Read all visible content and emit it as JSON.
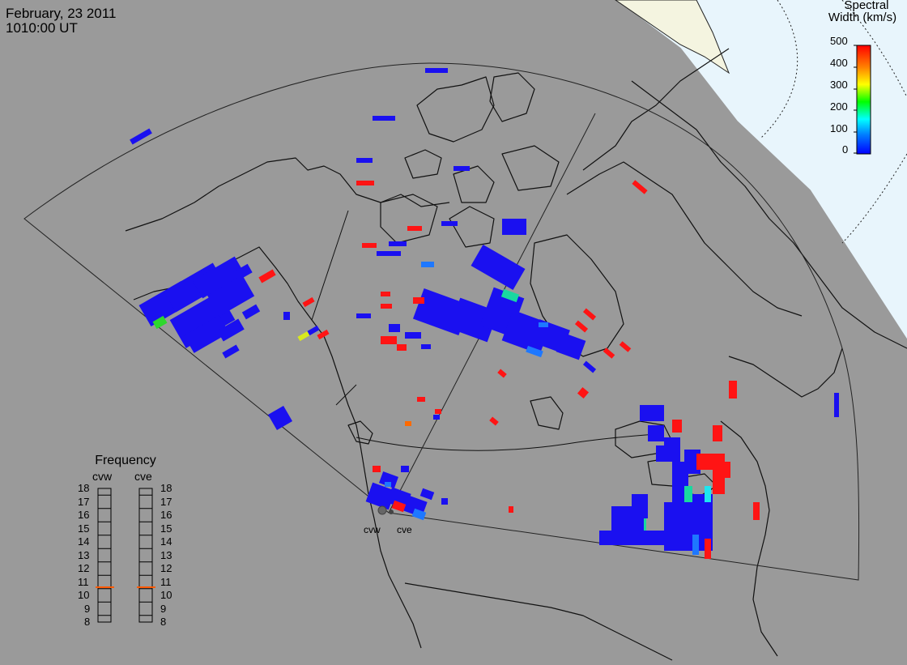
{
  "header": {
    "date": "February, 23 2011",
    "time": "1010:00 UT"
  },
  "colorbar": {
    "title_line1": "Spectral",
    "title_line2": "Width (km/s)",
    "ticks": [
      "500",
      "400",
      "300",
      "200",
      "100",
      "0"
    ],
    "colors": [
      "#ff0000",
      "#ff8000",
      "#ffff00",
      "#00ff00",
      "#00ffff",
      "#0080ff",
      "#0000ff"
    ]
  },
  "frequency_panel": {
    "title": "Frequency",
    "radars": [
      {
        "name": "cvw",
        "value_mhz": 10.6
      },
      {
        "name": "cve",
        "value_mhz": 10.6
      }
    ],
    "scale": [
      "18",
      "17",
      "16",
      "15",
      "14",
      "13",
      "12",
      "11",
      "10",
      "9",
      "8"
    ],
    "marker_color": "#ff5a00"
  },
  "map": {
    "radar_labels": [
      "cvw",
      "cve"
    ],
    "background_color": "#9a9a9a",
    "daylight_color": "#e6f4fc",
    "scatter_colors": {
      "low": "#1a10f0",
      "mid_low": "#1e78ff",
      "mid": "#19d8a0",
      "green": "#2dd82d",
      "yellow": "#d8e81e",
      "orange": "#ff6a00",
      "high": "#ff1414"
    }
  }
}
